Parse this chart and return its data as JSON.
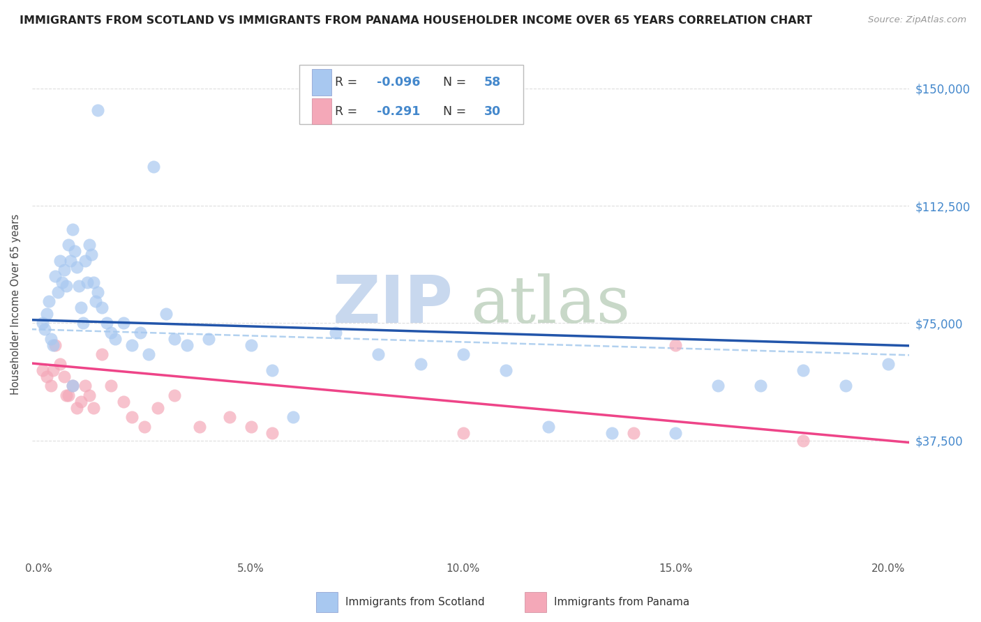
{
  "title": "IMMIGRANTS FROM SCOTLAND VS IMMIGRANTS FROM PANAMA HOUSEHOLDER INCOME OVER 65 YEARS CORRELATION CHART",
  "source": "Source: ZipAtlas.com",
  "ylabel": "Householder Income Over 65 years",
  "xlabel_ticks": [
    "0.0%",
    "5.0%",
    "10.0%",
    "15.0%",
    "20.0%"
  ],
  "xlabel_vals": [
    0.0,
    5.0,
    10.0,
    15.0,
    20.0
  ],
  "yticks_labels": [
    "$37,500",
    "$75,000",
    "$112,500",
    "$150,000"
  ],
  "yticks_vals": [
    37500,
    75000,
    112500,
    150000
  ],
  "ylim": [
    0,
    162000
  ],
  "xlim": [
    -0.15,
    20.5
  ],
  "scotland_color": "#a8c8f0",
  "panama_color": "#f4a8b8",
  "scotland_line_color": "#2255aa",
  "panama_line_color": "#ee4488",
  "dashed_line_color": "#aaccee",
  "watermark_zip": "ZIP",
  "watermark_atlas": "atlas",
  "watermark_zip_color": "#c8d8ee",
  "watermark_atlas_color": "#c8d8c8",
  "legend_box_color": "#dddddd",
  "scot_legend_color": "#a8c8f0",
  "pan_legend_color": "#f4a8b8",
  "text_blue_color": "#4488cc",
  "scotland_x": [
    0.1,
    0.15,
    0.2,
    0.25,
    0.3,
    0.35,
    0.4,
    0.45,
    0.5,
    0.55,
    0.6,
    0.65,
    0.7,
    0.75,
    0.8,
    0.85,
    0.9,
    0.95,
    1.0,
    1.05,
    1.1,
    1.15,
    1.2,
    1.25,
    1.3,
    1.35,
    1.4,
    1.5,
    1.6,
    1.7,
    1.8,
    2.0,
    2.2,
    2.4,
    2.6,
    3.0,
    3.2,
    3.5,
    4.0,
    5.0,
    5.5,
    6.0,
    7.0,
    8.0,
    9.0,
    10.0,
    11.0,
    12.0,
    13.5,
    15.0,
    16.0,
    17.0,
    18.0,
    19.0,
    20.0,
    1.4,
    2.7,
    0.8
  ],
  "scotland_y": [
    75000,
    73000,
    78000,
    82000,
    70000,
    68000,
    90000,
    85000,
    95000,
    88000,
    92000,
    87000,
    100000,
    95000,
    105000,
    98000,
    93000,
    87000,
    80000,
    75000,
    95000,
    88000,
    100000,
    97000,
    88000,
    82000,
    85000,
    80000,
    75000,
    72000,
    70000,
    75000,
    68000,
    72000,
    65000,
    78000,
    70000,
    68000,
    70000,
    68000,
    60000,
    45000,
    72000,
    65000,
    62000,
    65000,
    60000,
    42000,
    40000,
    40000,
    55000,
    55000,
    60000,
    55000,
    62000,
    143000,
    125000,
    55000
  ],
  "panama_x": [
    0.1,
    0.2,
    0.3,
    0.4,
    0.5,
    0.6,
    0.7,
    0.8,
    0.9,
    1.0,
    1.1,
    1.2,
    1.3,
    1.5,
    1.7,
    2.0,
    2.2,
    2.5,
    2.8,
    3.2,
    3.8,
    4.5,
    5.0,
    5.5,
    10.0,
    14.0,
    15.0,
    18.0,
    0.35,
    0.65
  ],
  "panama_y": [
    60000,
    58000,
    55000,
    68000,
    62000,
    58000,
    52000,
    55000,
    48000,
    50000,
    55000,
    52000,
    48000,
    65000,
    55000,
    50000,
    45000,
    42000,
    48000,
    52000,
    42000,
    45000,
    42000,
    40000,
    40000,
    40000,
    68000,
    37500,
    60000,
    52000
  ]
}
